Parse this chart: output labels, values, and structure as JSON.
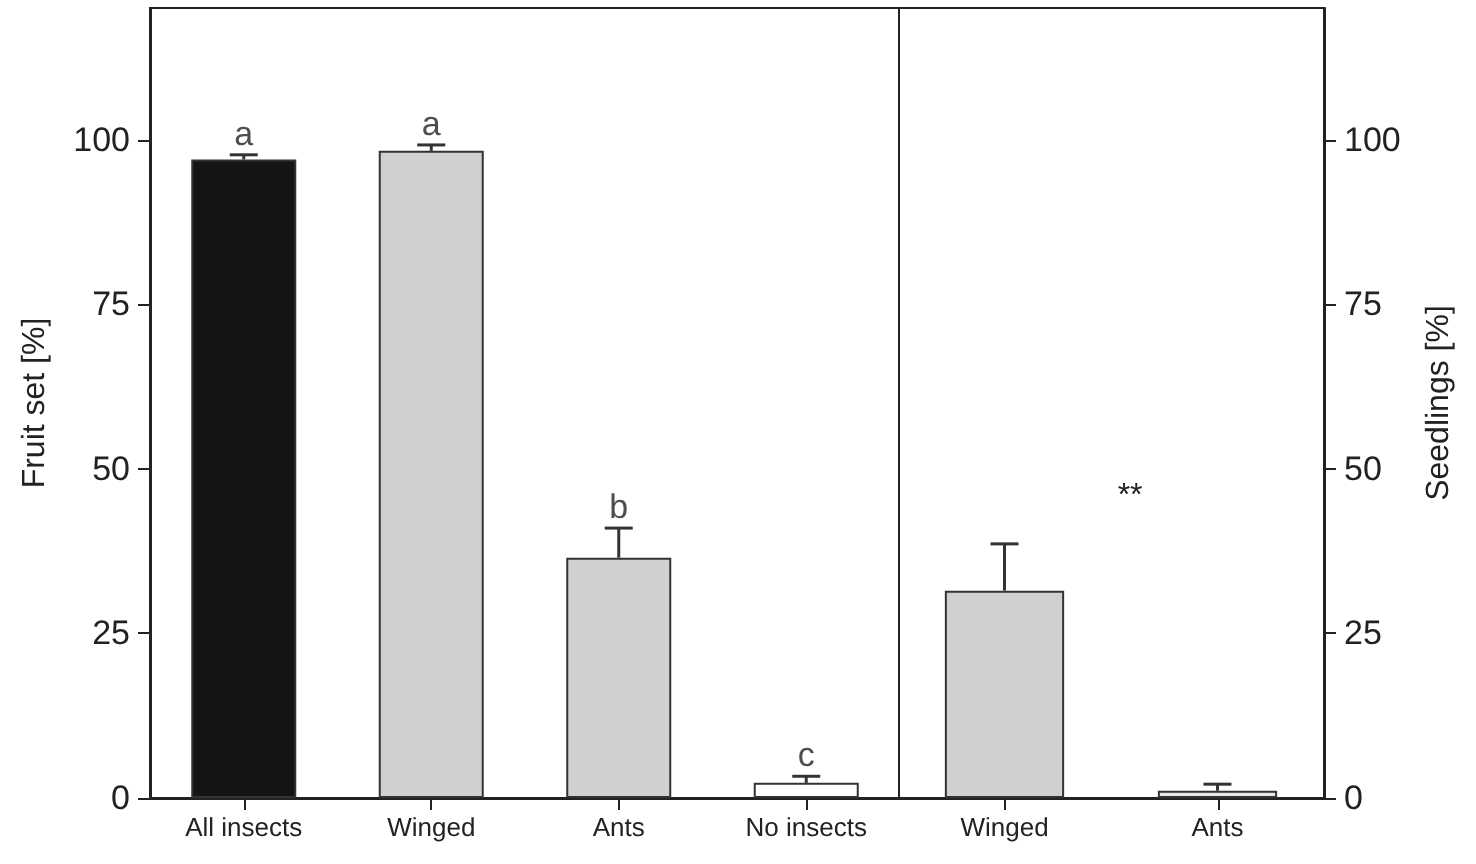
{
  "chart_data": [
    {
      "type": "bar",
      "ylabel": "Fruit set [%]",
      "categories": [
        "All insects",
        "Winged",
        "Ants",
        "No insects"
      ],
      "values": [
        97,
        98.3,
        36.5,
        2.3
      ],
      "colors": [
        "#141414",
        "#d0d0d0",
        "#d0d0d0",
        "#ffffff"
      ],
      "errors": [
        [
          97,
          97.7
        ],
        [
          98.3,
          99.2
        ],
        [
          36.5,
          41
        ],
        [
          2.3,
          3.3
        ]
      ],
      "ylim": [
        0,
        120
      ],
      "yticks": [
        0,
        25,
        50,
        75,
        100
      ],
      "grid": false,
      "annotations": [
        {
          "text": "a",
          "x": "All insects",
          "y": 97.7
        },
        {
          "text": "a",
          "x": "Winged",
          "y": 99.2
        },
        {
          "text": "b",
          "x": "Ants",
          "y": 41
        },
        {
          "text": "c",
          "x": "No insects",
          "y": 3.3
        }
      ]
    },
    {
      "type": "bar",
      "y2label": "Seedlings [%]",
      "categories": [
        "Winged",
        "Ants"
      ],
      "series": [
        {
          "values": [
            31.5,
            1.1
          ],
          "colors": [
            "#d0d0d0",
            "#e6e6e6"
          ],
          "axis": "y2",
          "errors": [
            [
              31.5,
              38.6
            ],
            [
              1.1,
              2.1
            ]
          ]
        }
      ],
      "y2lim": [
        0,
        120
      ],
      "y2ticks": [
        0,
        25,
        50,
        75,
        100
      ],
      "grid": false,
      "annotations": [
        "**"
      ]
    }
  ]
}
